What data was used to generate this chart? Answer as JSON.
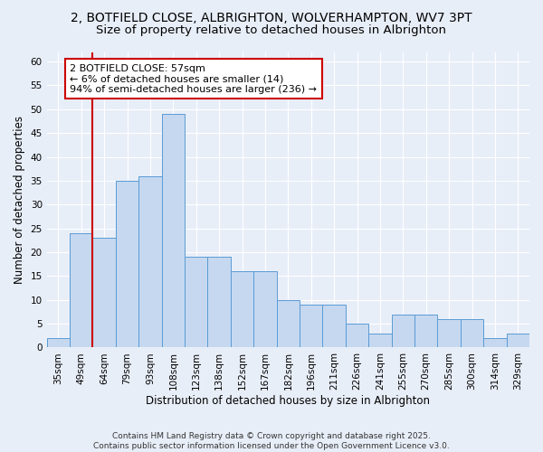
{
  "title_line1": "2, BOTFIELD CLOSE, ALBRIGHTON, WOLVERHAMPTON, WV7 3PT",
  "title_line2": "Size of property relative to detached houses in Albrighton",
  "xlabel": "Distribution of detached houses by size in Albrighton",
  "ylabel": "Number of detached properties",
  "categories": [
    "35sqm",
    "49sqm",
    "64sqm",
    "79sqm",
    "93sqm",
    "108sqm",
    "123sqm",
    "138sqm",
    "152sqm",
    "167sqm",
    "182sqm",
    "196sqm",
    "211sqm",
    "226sqm",
    "241sqm",
    "255sqm",
    "270sqm",
    "285sqm",
    "300sqm",
    "314sqm",
    "329sqm"
  ],
  "bar_values": [
    2,
    24,
    23,
    35,
    36,
    49,
    19,
    19,
    16,
    16,
    10,
    9,
    9,
    5,
    3,
    7,
    7,
    6,
    6,
    2,
    3
  ],
  "bar_color": "#c5d8f0",
  "bar_edge_color": "#5b9bd5",
  "vline_x": 1.5,
  "vline_color": "#cc0000",
  "annotation_text": "2 BOTFIELD CLOSE: 57sqm\n← 6% of detached houses are smaller (14)\n94% of semi-detached houses are larger (236) →",
  "annotation_box_color": "#ffffff",
  "annotation_box_edge": "#cc0000",
  "ylim": [
    0,
    62
  ],
  "yticks": [
    0,
    5,
    10,
    15,
    20,
    25,
    30,
    35,
    40,
    45,
    50,
    55,
    60
  ],
  "background_color": "#e8eef8",
  "plot_bg_color": "#e8eef8",
  "footer": "Contains HM Land Registry data © Crown copyright and database right 2025.\nContains public sector information licensed under the Open Government Licence v3.0.",
  "title_fontsize": 10,
  "subtitle_fontsize": 9.5,
  "axis_label_fontsize": 8.5,
  "tick_fontsize": 7.5,
  "annotation_fontsize": 8,
  "footer_fontsize": 6.5
}
